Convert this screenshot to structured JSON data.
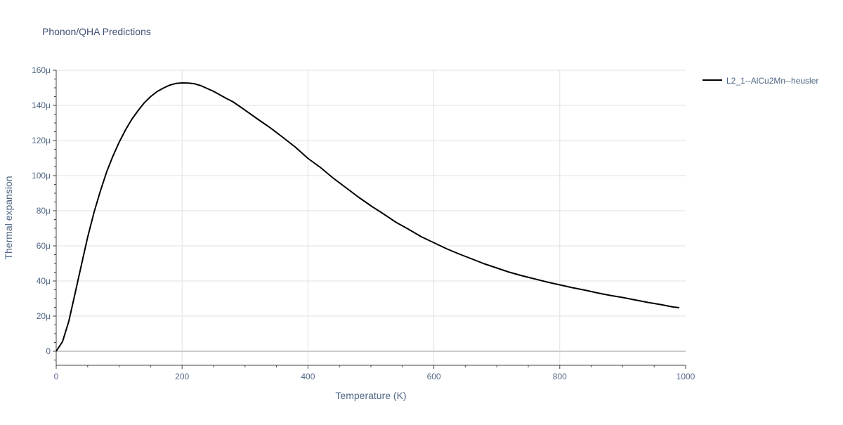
{
  "chart_data": {
    "type": "line",
    "title": "Phonon/QHA Predictions",
    "xlabel": "Temperature (K)",
    "ylabel": "Thermal expansion",
    "xlim": [
      0,
      1000
    ],
    "ylim": [
      -8,
      160
    ],
    "x_ticks": [
      0,
      200,
      400,
      600,
      800,
      1000
    ],
    "x_tick_labels": [
      "0",
      "200",
      "400",
      "600",
      "800",
      "1000"
    ],
    "y_ticks": [
      0,
      20,
      40,
      60,
      80,
      100,
      120,
      140,
      160
    ],
    "y_tick_labels": [
      "0",
      "20μ",
      "40μ",
      "60μ",
      "80μ",
      "100μ",
      "120μ",
      "140μ",
      "160μ"
    ],
    "y_unit_note": "values in units of 1e-6",
    "grid": true,
    "legend_position": "top-right",
    "colors": {
      "line": "#000000",
      "grid": "#e1e1e1",
      "zeroline": "#cccccc",
      "text": "#506784",
      "title": "#3e5074"
    },
    "series": [
      {
        "name": "L2_1--AlCu2Mn--heusler",
        "x": [
          0,
          10,
          20,
          30,
          40,
          50,
          60,
          70,
          80,
          90,
          100,
          110,
          120,
          130,
          140,
          150,
          160,
          170,
          180,
          190,
          200,
          210,
          220,
          230,
          240,
          250,
          260,
          270,
          280,
          290,
          300,
          320,
          340,
          360,
          380,
          400,
          420,
          440,
          460,
          480,
          500,
          520,
          540,
          560,
          580,
          600,
          620,
          640,
          660,
          680,
          700,
          720,
          740,
          760,
          780,
          800,
          820,
          840,
          860,
          880,
          900,
          920,
          940,
          960,
          980,
          990
        ],
        "y": [
          0,
          5.5,
          17,
          33,
          49,
          65,
          79,
          91,
          102,
          111,
          119,
          126,
          132,
          137,
          141.5,
          145,
          147.8,
          149.8,
          151.5,
          152.5,
          152.8,
          152.7,
          152.3,
          151.2,
          149.6,
          148,
          146,
          144,
          142.2,
          139.8,
          137.3,
          132.2,
          127.3,
          121.8,
          116.2,
          109.8,
          104.6,
          98.6,
          93.2,
          87.8,
          82.8,
          78.2,
          73.4,
          69.4,
          65.2,
          61.8,
          58.4,
          55.4,
          52.6,
          49.8,
          47.4,
          45,
          43,
          41.2,
          39.4,
          37.8,
          36.2,
          34.8,
          33.2,
          31.8,
          30.6,
          29.2,
          27.8,
          26.6,
          25.2,
          24.8
        ]
      }
    ]
  }
}
